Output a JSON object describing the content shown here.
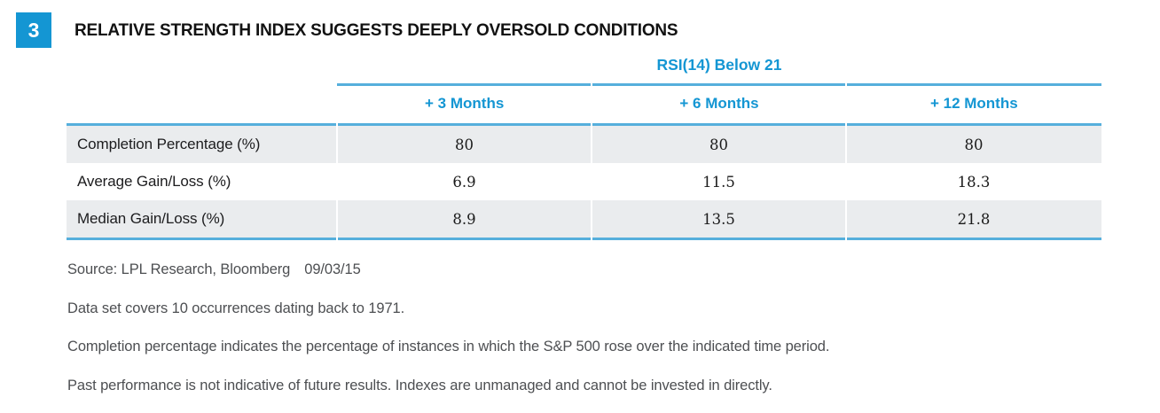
{
  "figure": {
    "badge_number": "3"
  },
  "chart_data": {
    "type": "table",
    "title": "RELATIVE STRENGTH INDEX SUGGESTS DEEPLY OVERSOLD CONDITIONS",
    "group_header": "RSI(14) Below 21",
    "columns": [
      "+ 3 Months",
      "+ 6 Months",
      "+ 12 Months"
    ],
    "rows": [
      {
        "label": "Completion Percentage (%)",
        "values": [
          "80",
          "80",
          "80"
        ]
      },
      {
        "label": "Average Gain/Loss (%)",
        "values": [
          "6.9",
          "11.5",
          "18.3"
        ]
      },
      {
        "label": "Median Gain/Loss (%)",
        "values": [
          "8.9",
          "13.5",
          "21.8"
        ]
      }
    ],
    "layout": {
      "shaded_row_indexes": [
        0,
        2
      ],
      "grid": "horizontal-rules-only",
      "value_alignment": "center"
    }
  },
  "footnotes": {
    "source": "Source: LPL Research, Bloomberg",
    "date": "09/03/15",
    "lines": [
      "Data set covers 10 occurrences dating back to 1971.",
      "Completion percentage indicates the percentage of instances in which the S&P 500 rose over the indicated time period.",
      "Past performance is not indicative of future results. Indexes are unmanaged and cannot be invested in directly."
    ]
  },
  "colors": {
    "accent_blue": "#1496d3",
    "line_blue": "#56afdc",
    "row_shade": "#eaecee",
    "text_dark": "#1c1c1e",
    "text_gray": "#4d4f52"
  }
}
